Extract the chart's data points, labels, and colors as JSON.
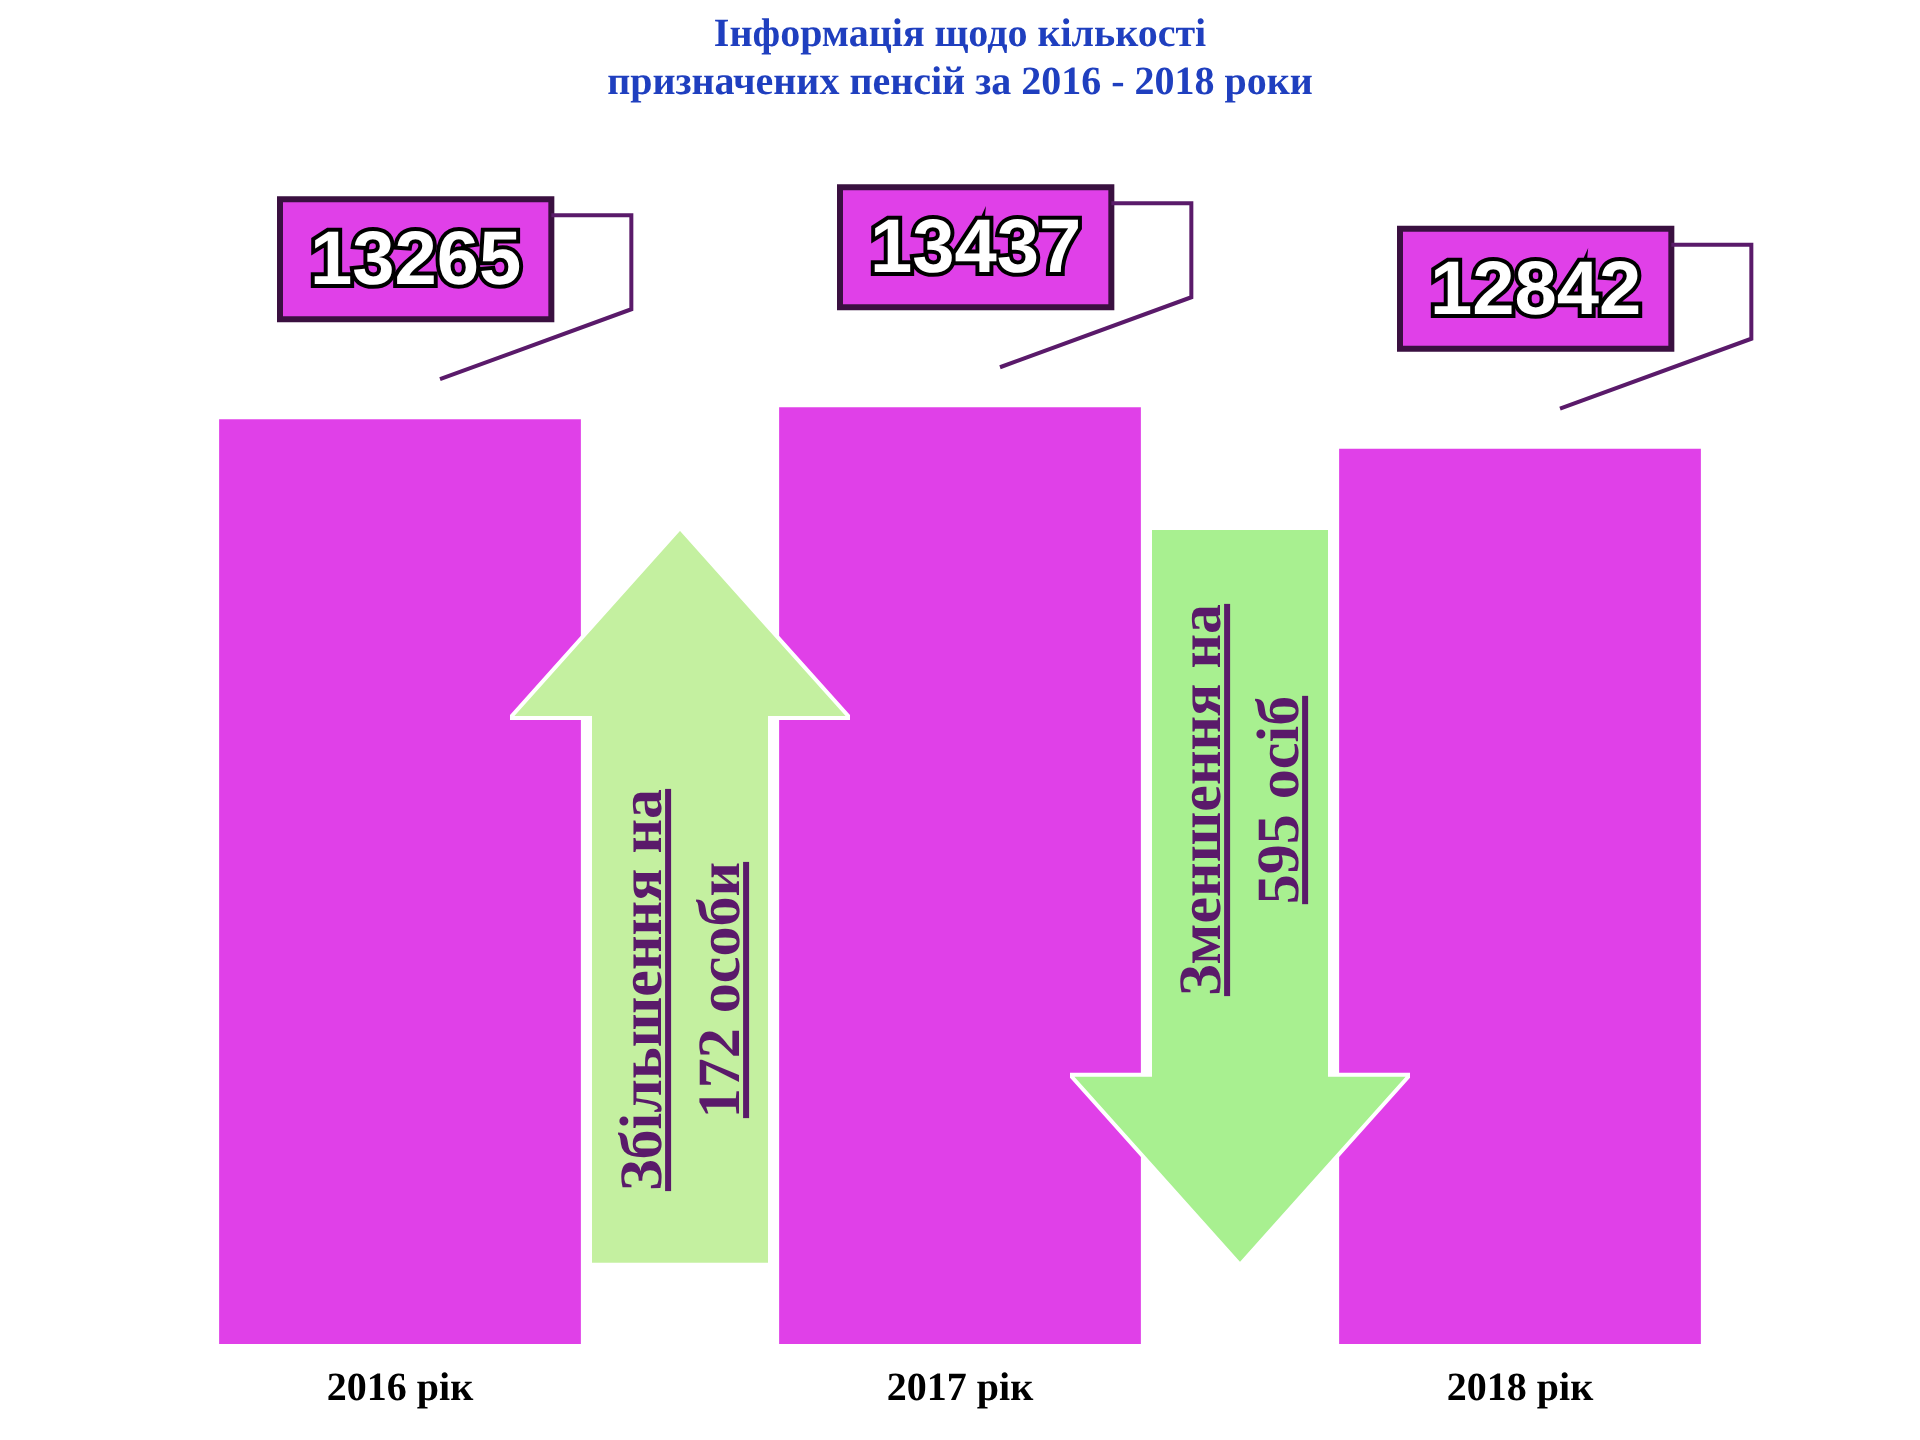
{
  "chart_data": {
    "type": "bar",
    "title": "Інформація щодо кількості\nпризначених пенсій за 2016 - 2018 роки",
    "categories": [
      "2016 рік",
      "2017 рік",
      "2018 рік"
    ],
    "values": [
      13265,
      13437,
      12842
    ],
    "color": "#e040e8",
    "data_labels": true,
    "grid": false,
    "legend": false,
    "annotations": [
      "Збільшення на\n172 особи",
      "Зменшення на\n595 осіб"
    ]
  }
}
